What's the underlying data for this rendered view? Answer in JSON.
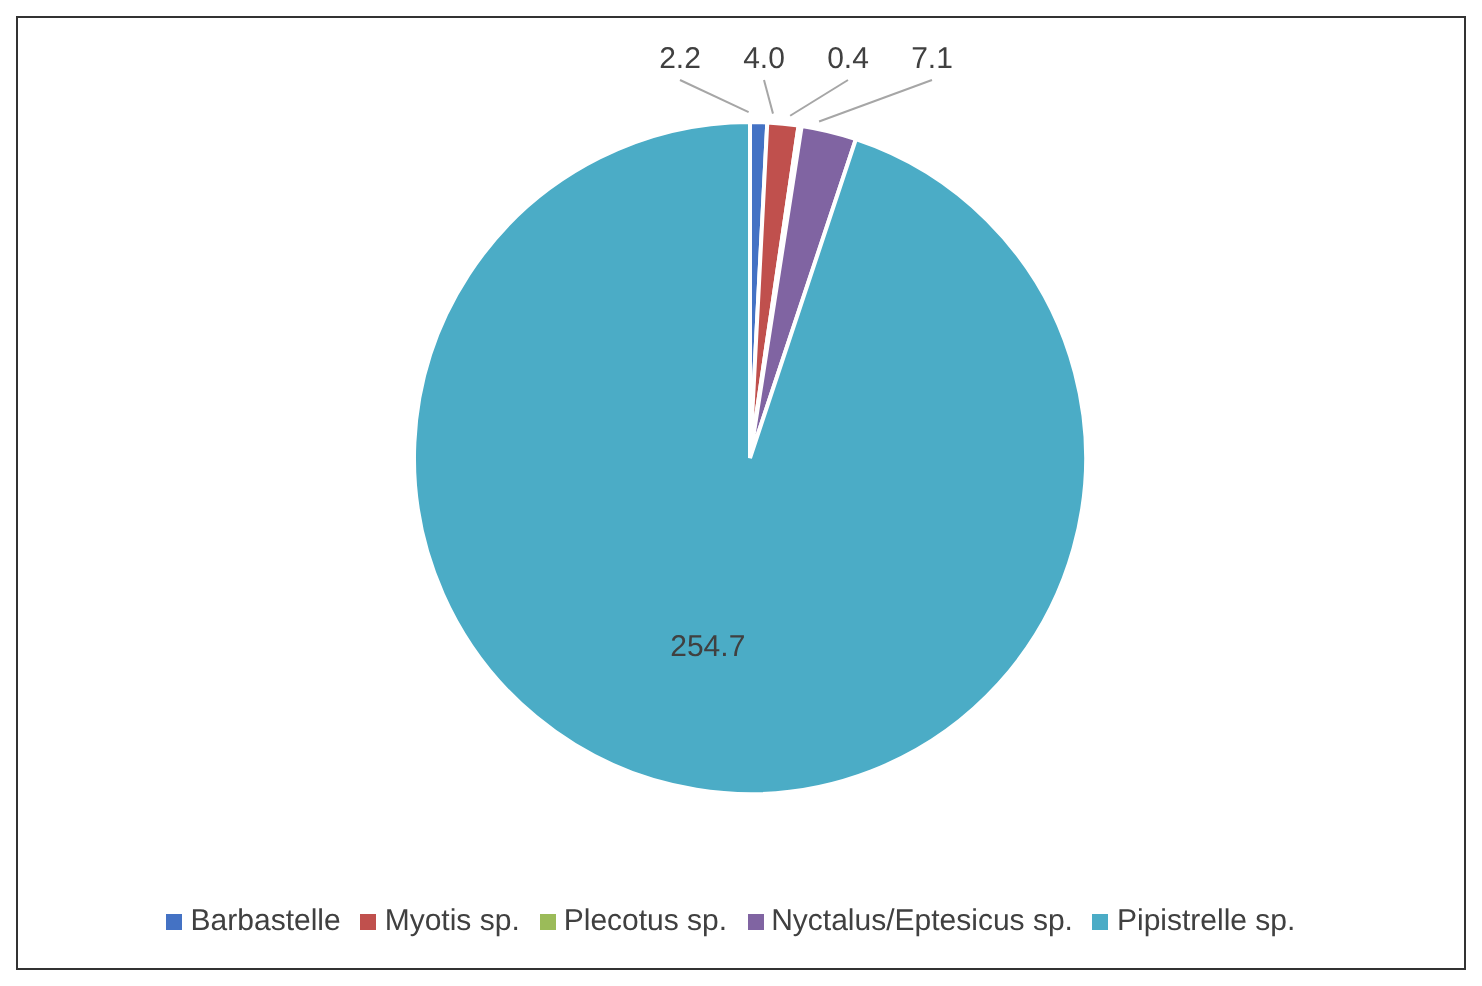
{
  "chart_data": {
    "type": "pie",
    "categories": [
      "Barbastelle",
      "Myotis sp.",
      "Plecotus sp.",
      "Nyctalus/Eptesicus sp.",
      "Pipistrelle sp."
    ],
    "values": [
      2.2,
      4.0,
      0.4,
      7.1,
      254.7
    ],
    "value_labels": [
      "2.2",
      "4.0",
      "0.4",
      "7.1",
      "254.7"
    ],
    "colors": [
      "#4472c4",
      "#c0504d",
      "#9bbb59",
      "#8064a2",
      "#4bacc6"
    ],
    "legend": "bottom"
  }
}
